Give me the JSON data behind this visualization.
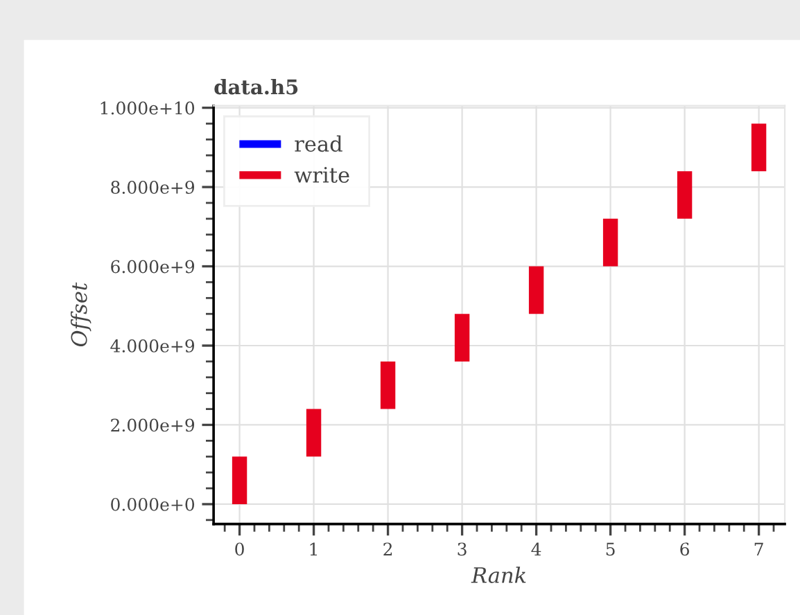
{
  "chart_data": {
    "type": "bar",
    "title": "data.h5",
    "xlabel": "Rank",
    "ylabel": "Offset",
    "x": [
      0,
      1,
      2,
      3,
      4,
      5,
      6,
      7
    ],
    "series": [
      {
        "name": "read",
        "color": "#0000ff",
        "values": [
          null,
          null,
          null,
          null,
          null,
          null,
          null,
          null
        ],
        "base": [
          null,
          null,
          null,
          null,
          null,
          null,
          null,
          null
        ]
      },
      {
        "name": "write",
        "color": "#e6001e",
        "values": [
          1200000000.0,
          1200000000.0,
          1200000000.0,
          1200000000.0,
          1200000000.0,
          1200000000.0,
          1200000000.0,
          1200000000.0
        ],
        "base": [
          0,
          1200000000.0,
          2400000000.0,
          3600000000.0,
          4800000000.0,
          6000000000.0,
          7200000000.0,
          8400000000.0
        ]
      }
    ],
    "xlim": [
      -0.35,
      7.35
    ],
    "xticks": [
      0,
      1,
      2,
      3,
      4,
      5,
      6,
      7
    ],
    "ylim": [
      -500000000.0,
      10050000000.0
    ],
    "yticks": [
      {
        "value": 0,
        "label": "0.000e+0"
      },
      {
        "value": 2000000000.0,
        "label": "2.000e+9"
      },
      {
        "value": 4000000000.0,
        "label": "4.000e+9"
      },
      {
        "value": 6000000000.0,
        "label": "6.000e+9"
      },
      {
        "value": 8000000000.0,
        "label": "8.000e+9"
      },
      {
        "value": 10000000000.0,
        "label": "1.000e+10"
      }
    ],
    "grid": true,
    "legend": "top left"
  }
}
